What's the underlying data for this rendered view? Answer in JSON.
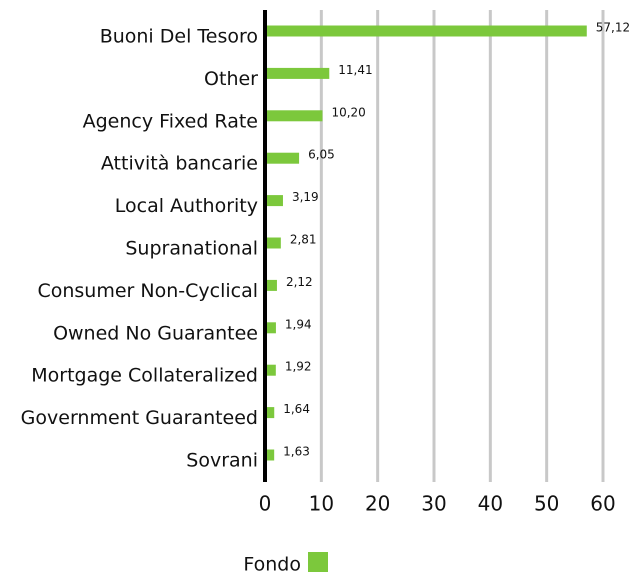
{
  "chart_data": {
    "type": "bar",
    "orientation": "horizontal",
    "categories": [
      "Buoni Del Tesoro",
      "Other",
      "Agency Fixed Rate",
      "Attività bancarie",
      "Local Authority",
      "Supranational",
      "Consumer Non-Cyclical",
      "Owned No Guarantee",
      "Mortgage Collateralized",
      "Government Guaranteed",
      "Sovrani"
    ],
    "series": [
      {
        "name": "Fondo",
        "color": "#7cc83c",
        "values": [
          57.12,
          11.41,
          10.2,
          6.05,
          3.19,
          2.81,
          2.12,
          1.94,
          1.92,
          1.64,
          1.63
        ],
        "value_labels": [
          "57,12",
          "11,41",
          "10,20",
          "6,05",
          "3,19",
          "2,81",
          "2,12",
          "1,94",
          "1,92",
          "1,64",
          "1,63"
        ]
      }
    ],
    "xlim": [
      0,
      60
    ],
    "xticks": [
      0,
      10,
      20,
      30,
      40,
      50,
      60
    ],
    "grid": true,
    "legend": "bottom"
  }
}
